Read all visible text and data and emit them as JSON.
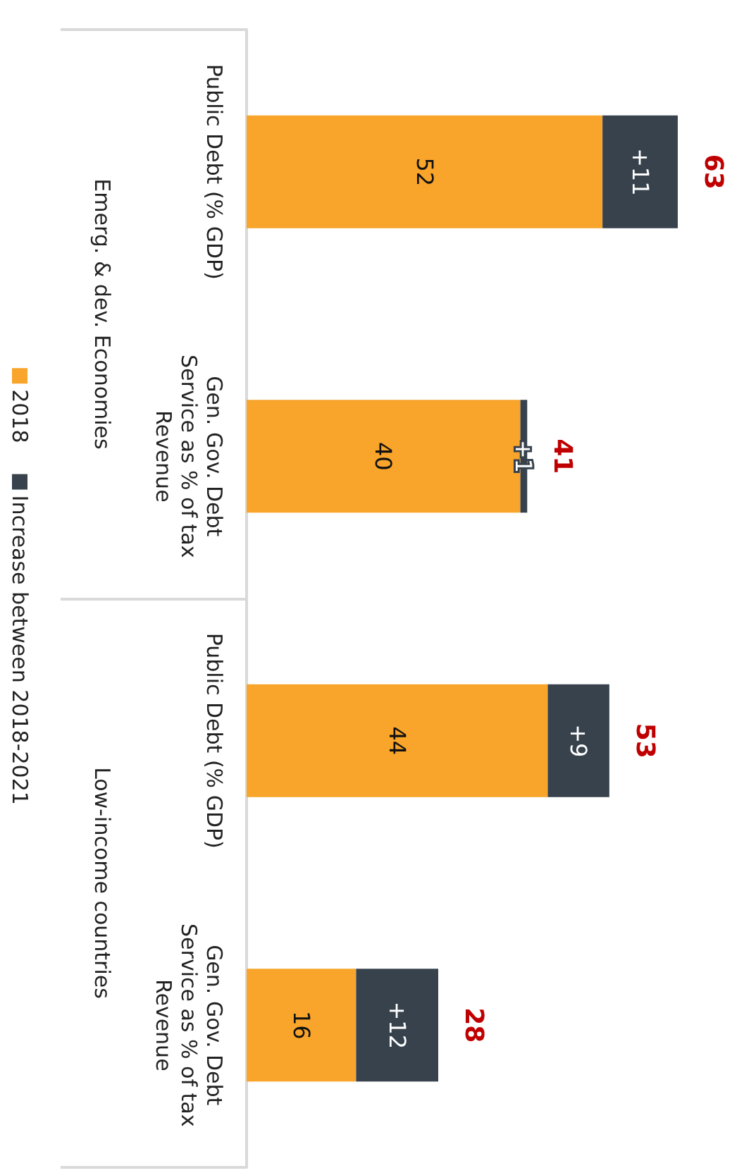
{
  "chart_data": {
    "type": "bar",
    "stacked": true,
    "orientation": "horizontal",
    "categories": [
      "Public Debt (% GDP)",
      "Gen. Gov. Debt Service as % of tax Revenue",
      "Public Debt (% GDP)",
      "Gen. Gov. Debt Service as % of tax Revenue"
    ],
    "series": [
      {
        "name": "2018",
        "color": "#f9a42b",
        "values": [
          52,
          40,
          44,
          16
        ],
        "value_labels": [
          "52",
          "40",
          "44",
          "16"
        ]
      },
      {
        "name": "Increase between 2018-2021",
        "color": "#37424d",
        "values": [
          11,
          1,
          9,
          12
        ],
        "value_labels": [
          "+11",
          "+1",
          "+9",
          "+12"
        ]
      }
    ],
    "totals": [
      "63",
      "41",
      "53",
      "28"
    ],
    "annotations": [
      "Emerg. & dev. Economies",
      "Low-income countries"
    ],
    "legend": "left"
  }
}
